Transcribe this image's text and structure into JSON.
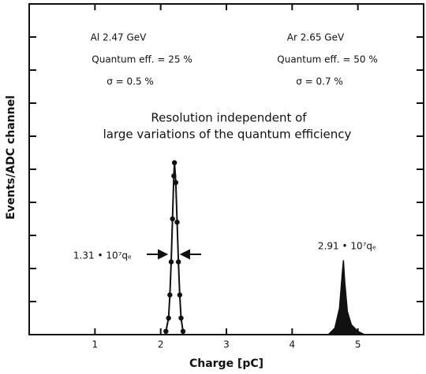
{
  "chart_data": {
    "type": "line",
    "x_label": "Charge [pC]",
    "y_label": "Events/ADC channel",
    "xlim": [
      0,
      6
    ],
    "ylim": [
      0,
      10
    ],
    "xticks": [
      1,
      2,
      3,
      4,
      5
    ],
    "yticks": [
      1,
      2,
      3,
      4,
      5,
      6,
      7,
      8,
      9
    ],
    "annotations": [
      "Al 2.47 GeV",
      "Quantum eff. = 25 %",
      "σ = 0.5 %",
      "Ar 2.65 GeV",
      "Quantum eff. = 50 %",
      "σ = 0.7 %",
      "Resolution independent of",
      "large variations of the quantum efficiency",
      "1.31 • 10⁷qₑ",
      "2.91 • 10⁷qₑ"
    ],
    "series": [
      {
        "name": "Al",
        "color": "#111111",
        "markers": true,
        "x": [
          2.08,
          2.12,
          2.14,
          2.16,
          2.18,
          2.2,
          2.21,
          2.23,
          2.25,
          2.27,
          2.29,
          2.31,
          2.34
        ],
        "values": [
          0.1,
          0.5,
          1.2,
          2.2,
          3.5,
          4.8,
          5.2,
          4.6,
          3.4,
          2.2,
          1.2,
          0.5,
          0.1
        ]
      },
      {
        "name": "Ar",
        "color": "#111111",
        "markers": false,
        "x": [
          4.55,
          4.65,
          4.72,
          4.76,
          4.78,
          4.8,
          4.84,
          4.9,
          5.0,
          5.1
        ],
        "values": [
          0,
          0.2,
          0.8,
          1.8,
          2.25,
          1.6,
          0.7,
          0.3,
          0.1,
          0
        ]
      }
    ]
  }
}
